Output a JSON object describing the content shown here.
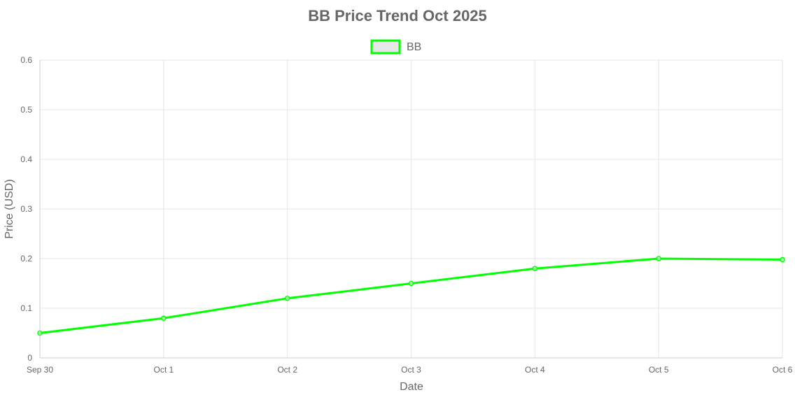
{
  "chart_data": {
    "type": "line",
    "title": "BB Price Trend Oct 2025",
    "xlabel": "Date",
    "ylabel": "Price (USD)",
    "categories": [
      "Sep 30",
      "Oct 1",
      "Oct 2",
      "Oct 3",
      "Oct 4",
      "Oct 5",
      "Oct 6"
    ],
    "ylim": [
      0,
      0.6
    ],
    "yticks": [
      "0",
      "0.1",
      "0.2",
      "0.3",
      "0.4",
      "0.5",
      "0.6"
    ],
    "grid": true,
    "legend_position": "top-center",
    "series": [
      {
        "name": "BB",
        "color": "#00ff00",
        "legend_fill": "#e6e6e6",
        "values": [
          0.05,
          0.08,
          0.12,
          0.15,
          0.18,
          0.2,
          0.198
        ]
      }
    ]
  },
  "colors": {
    "grid": "#e5e5e5",
    "axis": "#cccccc",
    "text": "#666666"
  }
}
